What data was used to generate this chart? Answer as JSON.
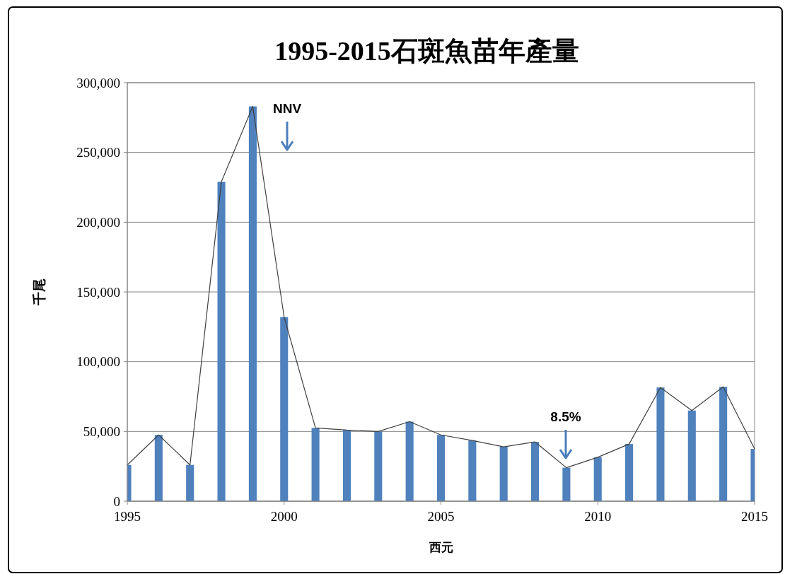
{
  "chart_data": {
    "type": "bar",
    "title": "1995-2015石斑魚苗年產量",
    "xlabel": "西元",
    "ylabel": "千尾",
    "x": [
      1995,
      1996,
      1997,
      1998,
      1999,
      2000,
      2001,
      2002,
      2003,
      2004,
      2005,
      2006,
      2007,
      2008,
      2009,
      2010,
      2011,
      2012,
      2013,
      2014,
      2015
    ],
    "series": [
      {
        "color": "#4f81bd",
        "values": [
          26000,
          47500,
          26000,
          229000,
          283000,
          132000,
          52500,
          51000,
          50000,
          57000,
          47500,
          43500,
          39000,
          42500,
          24000,
          31500,
          41000,
          81500,
          65000,
          82000,
          37500
        ]
      },
      {
        "type": "line",
        "color": "#404040",
        "values": [
          26000,
          47500,
          26000,
          229000,
          283000,
          132000,
          52500,
          51000,
          50000,
          57000,
          47500,
          43500,
          39000,
          42500,
          24000,
          31500,
          41000,
          81500,
          65000,
          82000,
          37500
        ]
      }
    ],
    "xlim": [
      1995,
      2015
    ],
    "xticks": [
      1995,
      2000,
      2005,
      2010,
      2015
    ],
    "ylim": [
      0,
      300000
    ],
    "yticks": [
      0,
      {
        "value": 50000,
        "label": "50,000"
      },
      {
        "value": 100000,
        "label": "100,000"
      },
      {
        "value": 150000,
        "label": "150,000"
      },
      {
        "value": 200000,
        "label": "200,000"
      },
      {
        "value": 250000,
        "label": "250,000"
      },
      {
        "value": 300000,
        "label": "300,000"
      }
    ],
    "grid": "y",
    "marker": "none",
    "line_style": "solid",
    "annotations": [
      "NNV",
      "8.5%"
    ]
  }
}
